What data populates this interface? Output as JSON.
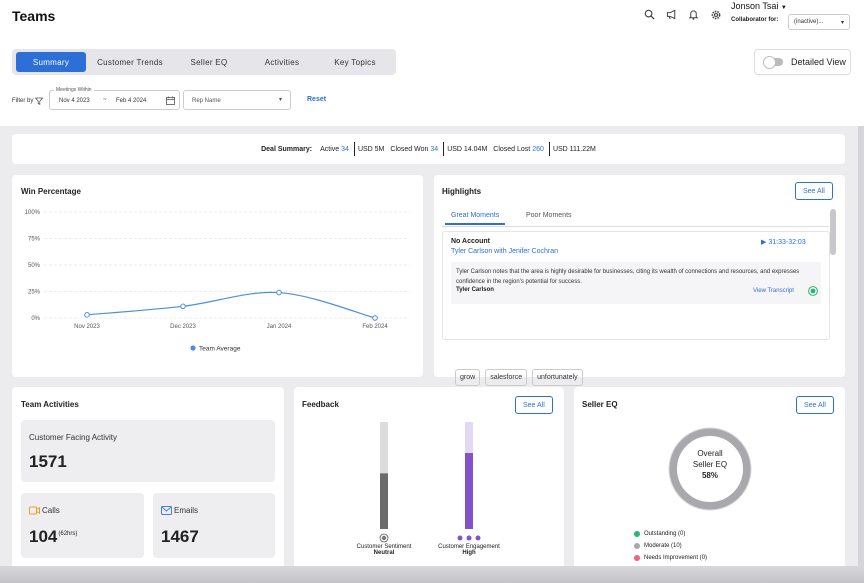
{
  "header": {
    "title": "Teams",
    "user_name": "Jonson Tsai",
    "collaborator_label": "Collaborator for:",
    "collaborator_value": "(inactive)..."
  },
  "tabs": [
    "Summary",
    "Customer Trends",
    "Seller EQ",
    "Activities",
    "Key Topics"
  ],
  "active_tab": "Summary",
  "detailed_view": {
    "label": "Detailed View",
    "enabled": false
  },
  "filters": {
    "label": "Filter by",
    "meetings_within_label": "Meetings Within",
    "date_from": "Nov 4 2023",
    "date_sep": "~",
    "date_to": "Feb 4 2024",
    "rep_placeholder": "Rep Name",
    "reset_label": "Reset"
  },
  "deal_summary": {
    "label": "Deal Summary:",
    "active_label": "Active",
    "active_count": "34",
    "active_value": "USD 5M",
    "won_label": "Closed Won",
    "won_count": "34",
    "won_value": "USD 14.04M",
    "lost_label": "Closed Lost",
    "lost_count": "260",
    "lost_value": "USD 111.22M"
  },
  "win_percentage": {
    "title": "Win Percentage"
  },
  "chart_data": {
    "type": "line",
    "title": "Win Percentage",
    "categories": [
      "Nov 2023",
      "Dec 2023",
      "Jan 2024",
      "Feb 2024"
    ],
    "y_ticks": [
      "100%",
      "75%",
      "50%",
      "25%",
      "0%"
    ],
    "ylim": [
      0,
      100
    ],
    "series": [
      {
        "name": "Team Average",
        "values": [
          3,
          11,
          24,
          0
        ],
        "color": "#4a90e2"
      }
    ],
    "grid": true,
    "legend": "bottom"
  },
  "highlights": {
    "title": "Highlights",
    "see_all": "See All",
    "tabs": [
      "Great Moments",
      "Poor Moments"
    ],
    "active_tab": "Great Moments",
    "moment": {
      "account": "No Account",
      "participants": "Tyler Carlson with Jenifer Cochran",
      "time_range": "31:33-32:03",
      "quote": "Tyler Carlson notes that the area is highly desirable for businesses, citing its wealth of connections and resources, and expresses confidence in the region's potential for success.",
      "speaker": "Tyler Carlson",
      "transcript_link": "View Transcript",
      "keywords": [
        "grow",
        "salesforce",
        "unfortunately"
      ]
    }
  },
  "team_activities": {
    "title": "Team Activities",
    "customer_facing_label": "Customer Facing Activity",
    "customer_facing_value": "1571",
    "calls_label": "Calls",
    "calls_value": "104",
    "calls_hours": "(62hrs)",
    "emails_label": "Emails",
    "emails_value": "1467"
  },
  "feedback": {
    "title": "Feedback",
    "see_all": "See All",
    "sentiment_label": "Customer Sentiment",
    "sentiment_value": "Neutral",
    "sentiment_level": 0.52,
    "engagement_label": "Customer Engagement",
    "engagement_value": "High",
    "engagement_level": 0.71,
    "colors": {
      "sentiment": "#6b6b6b",
      "sentiment_track": "#dcdcdc",
      "engagement": "#8152c9",
      "engagement_track": "#e2d8f3"
    }
  },
  "seller_eq": {
    "title": "Seller EQ",
    "see_all": "See All",
    "gauge_line1": "Overall",
    "gauge_line2": "Seller EQ",
    "gauge_value": "58%",
    "legend": [
      {
        "label": "Outstanding (0)",
        "color": "#2bb673"
      },
      {
        "label": "Moderate (10)",
        "color": "#a7a7a7"
      },
      {
        "label": "Needs Improvement (0)",
        "color": "#e8677e"
      }
    ]
  }
}
